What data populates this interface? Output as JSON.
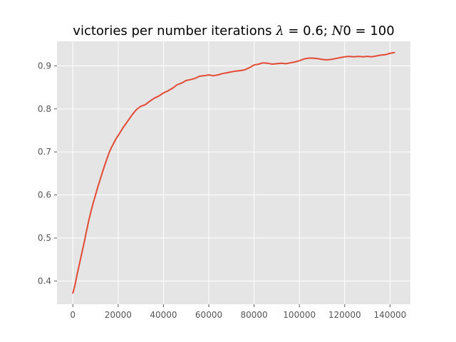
{
  "chart_data": {
    "type": "line",
    "title": {
      "text": "victories per number iterations ",
      "lambda_symbol": "λ",
      "lambda_eq": " = 0.6; ",
      "n0_symbol": "N",
      "n0_eq": "0 = 100"
    },
    "xlabel": "",
    "ylabel": "",
    "xlim": [
      -7000,
      149000
    ],
    "ylim": [
      0.346,
      0.957
    ],
    "grid": true,
    "xticks": [
      0,
      20000,
      40000,
      60000,
      80000,
      100000,
      120000,
      140000
    ],
    "xtick_labels": [
      "0",
      "20000",
      "40000",
      "60000",
      "80000",
      "100000",
      "120000",
      "140000"
    ],
    "yticks": [
      0.4,
      0.5,
      0.6,
      0.7,
      0.8,
      0.9
    ],
    "ytick_labels": [
      "0.4",
      "0.5",
      "0.6",
      "0.7",
      "0.8",
      "0.9"
    ],
    "series": [
      {
        "color": "#e24a33",
        "x": [
          0,
          1000,
          2000,
          3000,
          4000,
          5000,
          6000,
          7000,
          8000,
          9000,
          10000,
          11000,
          12000,
          13000,
          14000,
          15000,
          16000,
          17000,
          18000,
          19000,
          20000,
          22000,
          24000,
          26000,
          28000,
          30000,
          32000,
          34000,
          36000,
          38000,
          40000,
          42000,
          44000,
          46000,
          48000,
          50000,
          52000,
          54000,
          56000,
          58000,
          60000,
          62000,
          64000,
          66000,
          68000,
          70000,
          72000,
          74000,
          76000,
          78000,
          80000,
          82000,
          84000,
          86000,
          88000,
          90000,
          92000,
          94000,
          96000,
          98000,
          100000,
          102000,
          104000,
          106000,
          108000,
          110000,
          112000,
          114000,
          116000,
          118000,
          120000,
          122000,
          124000,
          126000,
          128000,
          130000,
          132000,
          134000,
          136000,
          138000,
          140000,
          142000
        ],
        "y": [
          0.372,
          0.392,
          0.418,
          0.442,
          0.466,
          0.49,
          0.515,
          0.54,
          0.562,
          0.582,
          0.6,
          0.618,
          0.635,
          0.652,
          0.668,
          0.683,
          0.698,
          0.71,
          0.72,
          0.73,
          0.738,
          0.755,
          0.77,
          0.785,
          0.798,
          0.806,
          0.81,
          0.818,
          0.825,
          0.83,
          0.837,
          0.842,
          0.848,
          0.856,
          0.86,
          0.866,
          0.868,
          0.871,
          0.876,
          0.877,
          0.879,
          0.877,
          0.879,
          0.882,
          0.884,
          0.886,
          0.888,
          0.889,
          0.891,
          0.896,
          0.902,
          0.904,
          0.907,
          0.906,
          0.904,
          0.905,
          0.906,
          0.905,
          0.907,
          0.909,
          0.912,
          0.916,
          0.918,
          0.918,
          0.917,
          0.915,
          0.914,
          0.915,
          0.917,
          0.919,
          0.921,
          0.922,
          0.921,
          0.922,
          0.921,
          0.922,
          0.921,
          0.923,
          0.925,
          0.926,
          0.929,
          0.931
        ]
      }
    ]
  }
}
